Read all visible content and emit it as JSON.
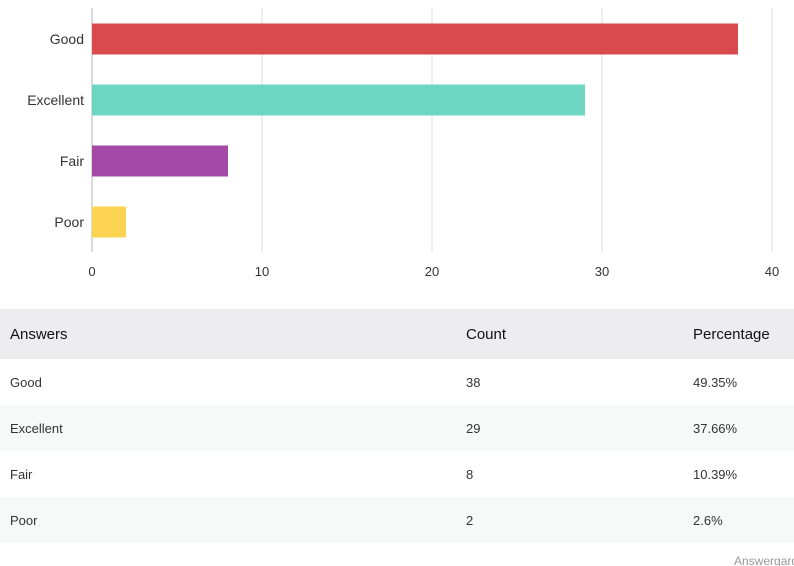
{
  "chart_data": {
    "type": "bar",
    "orientation": "horizontal",
    "categories": [
      "Good",
      "Excellent",
      "Fair",
      "Poor"
    ],
    "values": [
      38,
      29,
      8,
      2
    ],
    "colors": [
      "#d94a4f",
      "#6dd6c0",
      "#a24aa6",
      "#fdd452"
    ],
    "xlim": [
      0,
      40
    ],
    "xticks": [
      0,
      10,
      20,
      30,
      40
    ],
    "grid": true,
    "title": "",
    "xlabel": "",
    "ylabel": ""
  },
  "table": {
    "headers": {
      "answers": "Answers",
      "count": "Count",
      "percentage": "Percentage"
    },
    "rows": [
      {
        "answer": "Good",
        "count": "38",
        "percentage": "49.35%"
      },
      {
        "answer": "Excellent",
        "count": "29",
        "percentage": "37.66%"
      },
      {
        "answer": "Fair",
        "count": "8",
        "percentage": "10.39%"
      },
      {
        "answer": "Poor",
        "count": "2",
        "percentage": "2.6%"
      }
    ]
  },
  "footer": {
    "text": "Answergarden"
  }
}
